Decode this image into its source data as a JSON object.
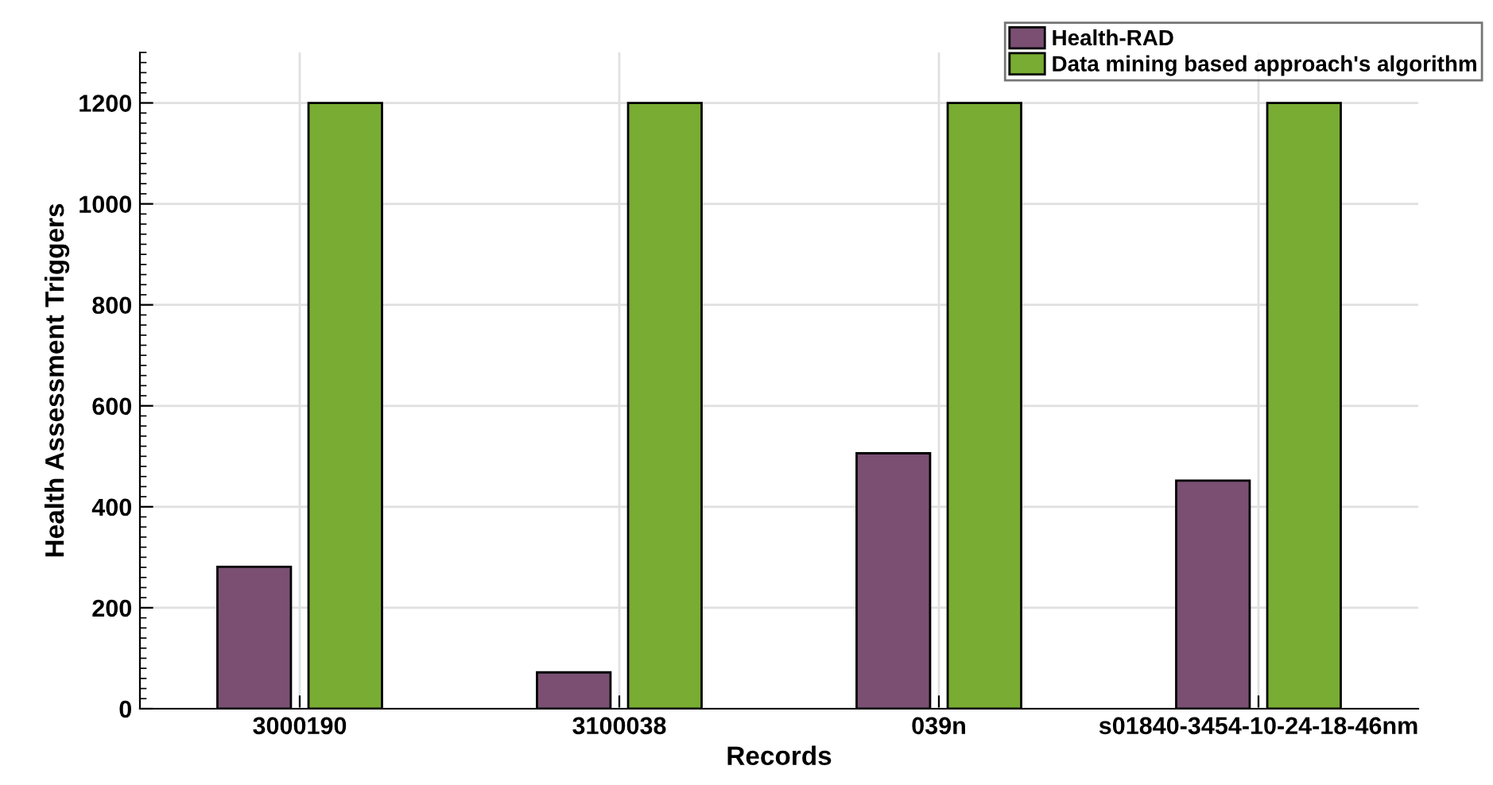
{
  "chart_data": {
    "type": "bar",
    "xlabel": "Records",
    "ylabel": "Health Assessment Triggers",
    "categories": [
      "3000190",
      "3100038",
      "039n",
      "s01840-3454-10-24-18-46nm"
    ],
    "series": [
      {
        "name": "Health-RAD",
        "color": "#7a4f72",
        "values": [
          281,
          72,
          506,
          452
        ]
      },
      {
        "name": "Data mining based approach's algorithm",
        "color": "#78ac32",
        "values": [
          1200,
          1200,
          1200,
          1200
        ]
      }
    ],
    "ylim": [
      0,
      1300
    ],
    "yticks": [
      0,
      200,
      400,
      600,
      800,
      1000,
      1200
    ],
    "grid": true,
    "legend": "top right"
  }
}
